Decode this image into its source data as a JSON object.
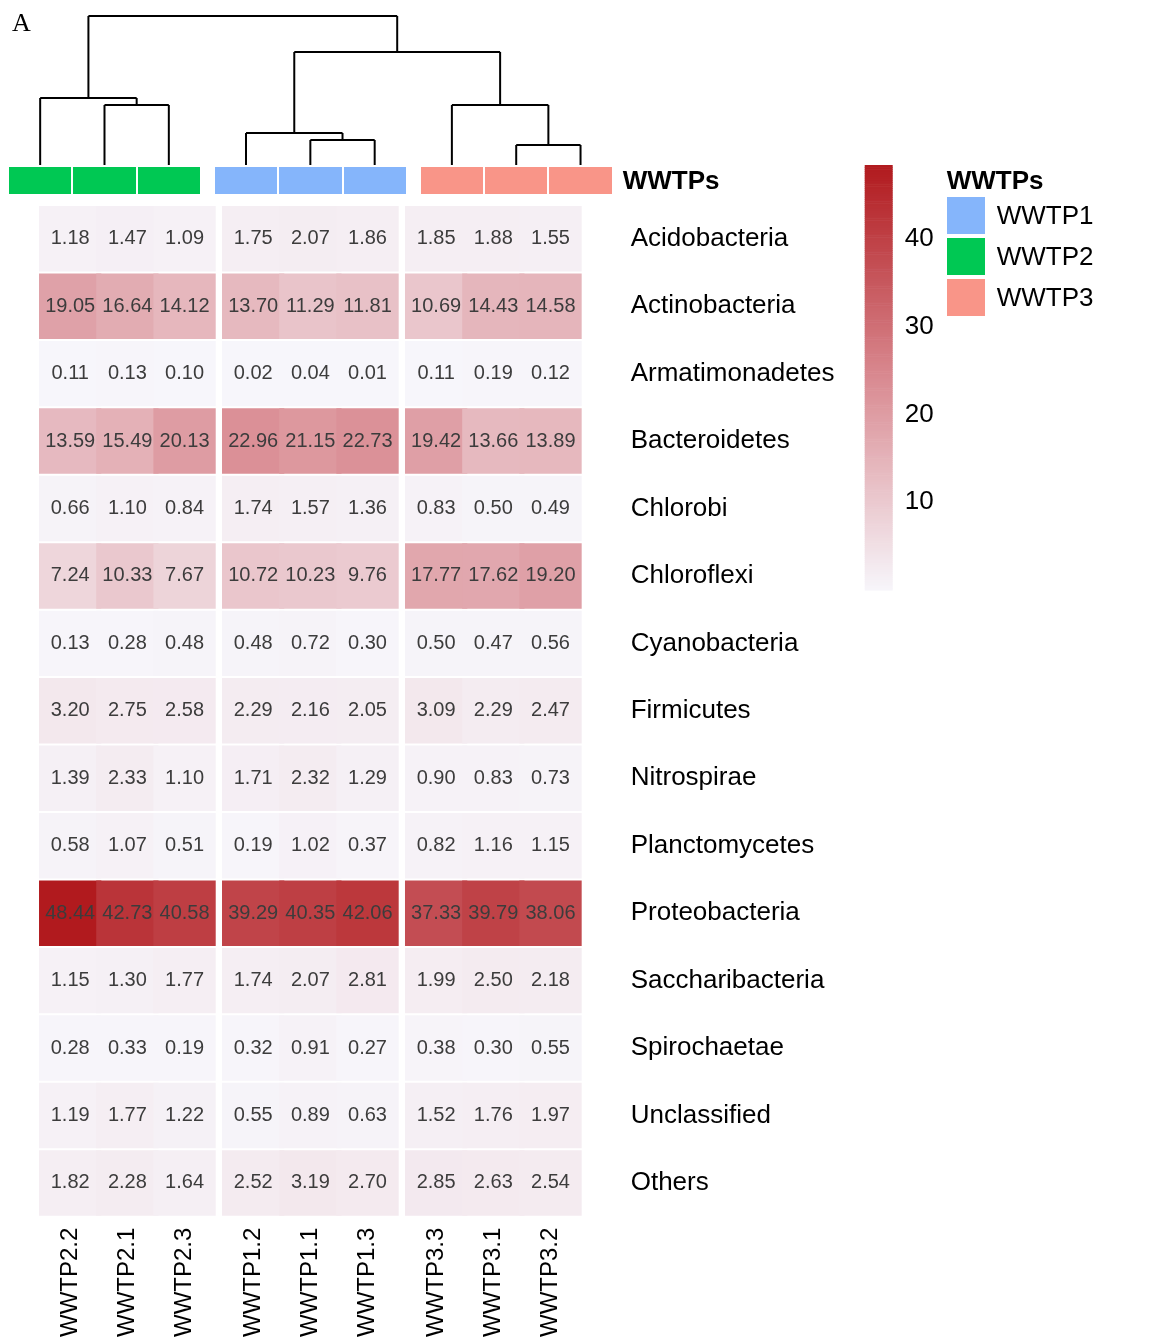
{
  "chart_data": {
    "type": "heatmap",
    "annotations": [
      "A",
      "WWTPs",
      "WWTP1",
      "WWTP2",
      "WWTP3"
    ],
    "data_labels": true,
    "clim": [
      0,
      48.44
    ],
    "cticks": [
      10,
      20,
      30,
      40
    ],
    "legend_title": "WWTPs",
    "categories": [
      "WWTP2.2",
      "WWTP2.1",
      "WWTP2.3",
      "WWTP1.2",
      "WWTP1.1",
      "WWTP1.3",
      "WWTP3.3",
      "WWTP3.1",
      "WWTP3.2"
    ],
    "y_categories": [
      "Acidobacteria",
      "Actinobacteria",
      "Armatimonadetes",
      "Bacteroidetes",
      "Chlorobi",
      "Chloroflexi",
      "Cyanobacteria",
      "Firmicutes",
      "Nitrospirae",
      "Planctomycetes",
      "Proteobacteria",
      "Saccharibacteria",
      "Spirochaetae",
      "Unclassified",
      "Others"
    ],
    "cells": [
      [
        1.18,
        1.47,
        1.09,
        1.75,
        2.07,
        1.86,
        1.85,
        1.88,
        1.55
      ],
      [
        19.05,
        16.64,
        14.12,
        13.7,
        11.29,
        11.81,
        10.69,
        14.43,
        14.58
      ],
      [
        0.11,
        0.13,
        0.1,
        0.02,
        0.04,
        0.01,
        0.11,
        0.19,
        0.12
      ],
      [
        13.59,
        15.49,
        20.13,
        22.96,
        21.15,
        22.73,
        19.42,
        13.66,
        13.89
      ],
      [
        0.66,
        1.1,
        0.84,
        1.74,
        1.57,
        1.36,
        0.83,
        0.5,
        0.49
      ],
      [
        7.24,
        10.33,
        7.67,
        10.72,
        10.23,
        9.76,
        17.77,
        17.62,
        19.2
      ],
      [
        0.13,
        0.28,
        0.48,
        0.48,
        0.72,
        0.3,
        0.5,
        0.47,
        0.56
      ],
      [
        3.2,
        2.75,
        2.58,
        2.29,
        2.16,
        2.05,
        3.09,
        2.29,
        2.47
      ],
      [
        1.39,
        2.33,
        1.1,
        1.71,
        2.32,
        1.29,
        0.9,
        0.83,
        0.73
      ],
      [
        0.58,
        1.07,
        0.51,
        0.19,
        1.02,
        0.37,
        0.82,
        1.16,
        1.15
      ],
      [
        48.44,
        42.73,
        40.58,
        39.29,
        40.35,
        42.06,
        37.33,
        39.79,
        38.06
      ],
      [
        1.15,
        1.3,
        1.77,
        1.74,
        2.07,
        2.81,
        1.99,
        2.5,
        2.18
      ],
      [
        0.28,
        0.33,
        0.19,
        0.32,
        0.91,
        0.27,
        0.38,
        0.3,
        0.55
      ],
      [
        1.19,
        1.77,
        1.22,
        0.55,
        0.89,
        0.63,
        1.52,
        1.76,
        1.97
      ],
      [
        1.82,
        2.28,
        1.64,
        2.52,
        3.19,
        2.7,
        2.85,
        2.63,
        2.54
      ]
    ],
    "cell_labels": [
      [
        "1.18",
        "1.47",
        "1.09",
        "1.75",
        "2.07",
        "1.86",
        "1.85",
        "1.88",
        "1.55"
      ],
      [
        "19.05",
        "16.64",
        "14.12",
        "13.70",
        "11.29",
        "11.81",
        "10.69",
        "14.43",
        "14.58"
      ],
      [
        "0.11",
        "0.13",
        "0.10",
        "0.02",
        "0.04",
        "0.01",
        "0.11",
        "0.19",
        "0.12"
      ],
      [
        "13.59",
        "15.49",
        "20.13",
        "22.96",
        "21.15",
        "22.73",
        "19.42",
        "13.66",
        "13.89"
      ],
      [
        "0.66",
        "1.10",
        "0.84",
        "1.74",
        "1.57",
        "1.36",
        "0.83",
        "0.50",
        "0.49"
      ],
      [
        "7.24",
        "10.33",
        "7.67",
        "10.72",
        "10.23",
        "9.76",
        "17.77",
        "17.62",
        "19.20"
      ],
      [
        "0.13",
        "0.28",
        "0.48",
        "0.48",
        "0.72",
        "0.30",
        "0.50",
        "0.47",
        "0.56"
      ],
      [
        "3.20",
        "2.75",
        "2.58",
        "2.29",
        "2.16",
        "2.05",
        "3.09",
        "2.29",
        "2.47"
      ],
      [
        "1.39",
        "2.33",
        "1.10",
        "1.71",
        "2.32",
        "1.29",
        "0.90",
        "0.83",
        "0.73"
      ],
      [
        "0.58",
        "1.07",
        "0.51",
        "0.19",
        "1.02",
        "0.37",
        "0.82",
        "1.16",
        "1.15"
      ],
      [
        "48.44",
        "42.73",
        "40.58",
        "39.29",
        "40.35",
        "42.06",
        "37.33",
        "39.79",
        "38.06"
      ],
      [
        "1.15",
        "1.30",
        "1.77",
        "1.74",
        "2.07",
        "2.81",
        "1.99",
        "2.50",
        "2.18"
      ],
      [
        "0.28",
        "0.33",
        "0.19",
        "0.32",
        "0.91",
        "0.27",
        "0.38",
        "0.30",
        "0.55"
      ],
      [
        "1.19",
        "1.77",
        "1.22",
        "0.55",
        "0.89",
        "0.63",
        "1.52",
        "1.76",
        "1.97"
      ],
      [
        "1.82",
        "2.28",
        "1.64",
        "2.52",
        "3.19",
        "2.70",
        "2.85",
        "2.63",
        "2.54"
      ]
    ]
  }
}
